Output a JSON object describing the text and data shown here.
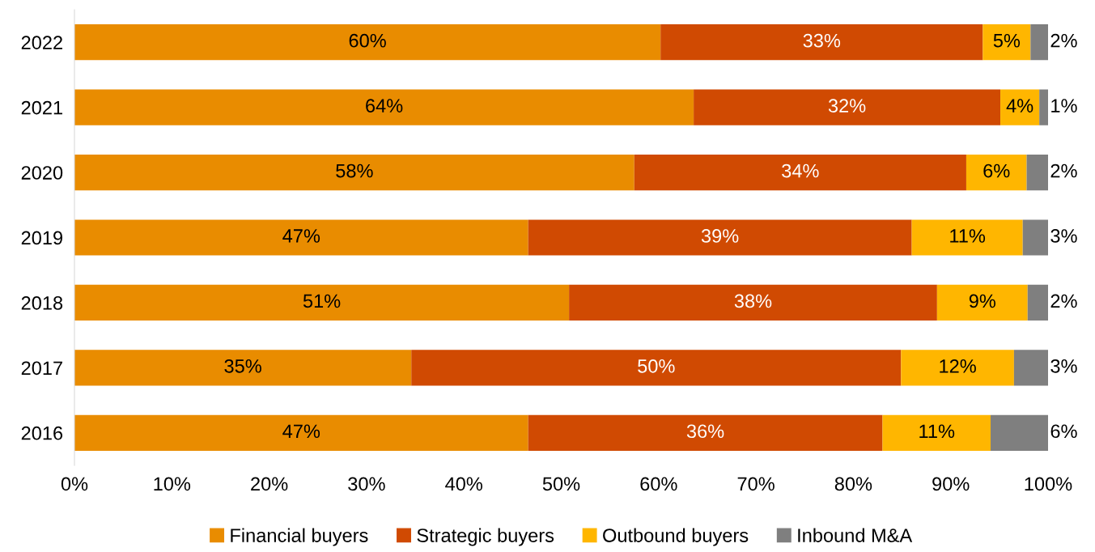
{
  "chart_data": {
    "type": "bar",
    "orientation": "horizontal",
    "stacked": true,
    "categories": [
      "2022",
      "2021",
      "2020",
      "2019",
      "2018",
      "2017",
      "2016"
    ],
    "series": [
      {
        "name": "Financial buyers",
        "color": "#e98c00",
        "values": [
          60.2,
          63.6,
          57.5,
          46.6,
          50.8,
          34.6,
          46.6
        ],
        "value_labels": [
          "60%",
          "64%",
          "58%",
          "47%",
          "51%",
          "35%",
          "47%"
        ]
      },
      {
        "name": "Strategic buyers",
        "color": "#d04a02",
        "values": [
          33.1,
          31.5,
          34.1,
          39.4,
          37.8,
          50.3,
          36.4
        ],
        "value_labels": [
          "33%",
          "32%",
          "34%",
          "39%",
          "38%",
          "50%",
          "36%"
        ]
      },
      {
        "name": "Outbound buyers",
        "color": "#ffb600",
        "values": [
          4.9,
          4.0,
          6.2,
          11.4,
          9.3,
          11.6,
          11.1
        ],
        "value_labels": [
          "5%",
          "4%",
          "6%",
          "11%",
          "9%",
          "12%",
          "11%"
        ]
      },
      {
        "name": "Inbound M&A",
        "color": "#7f7f7f",
        "values": [
          1.8,
          0.9,
          2.2,
          2.6,
          2.1,
          3.5,
          5.9
        ],
        "value_labels": [
          "2%",
          "1%",
          "2%",
          "3%",
          "2%",
          "3%",
          "6%"
        ]
      }
    ],
    "xlim": [
      0,
      100
    ],
    "xticks": [
      {
        "value": 0,
        "label": "0%"
      },
      {
        "value": 10,
        "label": "10%"
      },
      {
        "value": 20,
        "label": "20%"
      },
      {
        "value": 30,
        "label": "30%"
      },
      {
        "value": 40,
        "label": "40%"
      },
      {
        "value": 50,
        "label": "50%"
      },
      {
        "value": 60,
        "label": "60%"
      },
      {
        "value": 70,
        "label": "70%"
      },
      {
        "value": 80,
        "label": "80%"
      },
      {
        "value": 90,
        "label": "90%"
      },
      {
        "value": 100,
        "label": "100%"
      }
    ],
    "grid": false,
    "legend": "bottom"
  }
}
